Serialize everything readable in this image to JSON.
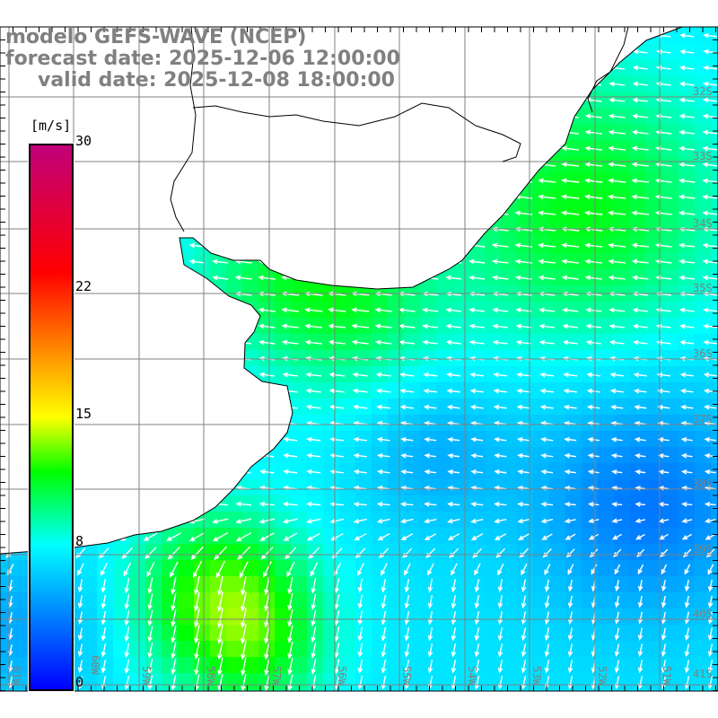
{
  "title": {
    "model": "modelo GEFS-WAVE (NCEP)",
    "forecast": "forecast date: 2025-12-06 12:00:00",
    "valid": "valid date: 2025-12-08 18:00:00"
  },
  "colorbar": {
    "units": "[m/s]",
    "ticks": [
      {
        "value": 30,
        "label": "30"
      },
      {
        "value": 22,
        "label": "22"
      },
      {
        "value": 15,
        "label": "15"
      },
      {
        "value": 8,
        "label": "8"
      },
      {
        "value": 0,
        "label": "0"
      }
    ],
    "min": 0,
    "max": 30,
    "colors": [
      "#0000ff",
      "#0080ff",
      "#00ffff",
      "#00ff00",
      "#ffff00",
      "#ff8000",
      "#ff0000",
      "#c0007a"
    ]
  },
  "grid": {
    "lat_labels": [
      "32S",
      "33S",
      "34S",
      "35S",
      "36S",
      "37S",
      "38S",
      "39S",
      "40S",
      "41S"
    ],
    "lon_labels": [
      "61W",
      "60W",
      "59W",
      "58W",
      "57W",
      "56W",
      "55W",
      "54W",
      "53W",
      "52W",
      "51W"
    ]
  },
  "colors": {
    "label": "#808080",
    "grid": "#a08070",
    "land": "#ffffff"
  }
}
